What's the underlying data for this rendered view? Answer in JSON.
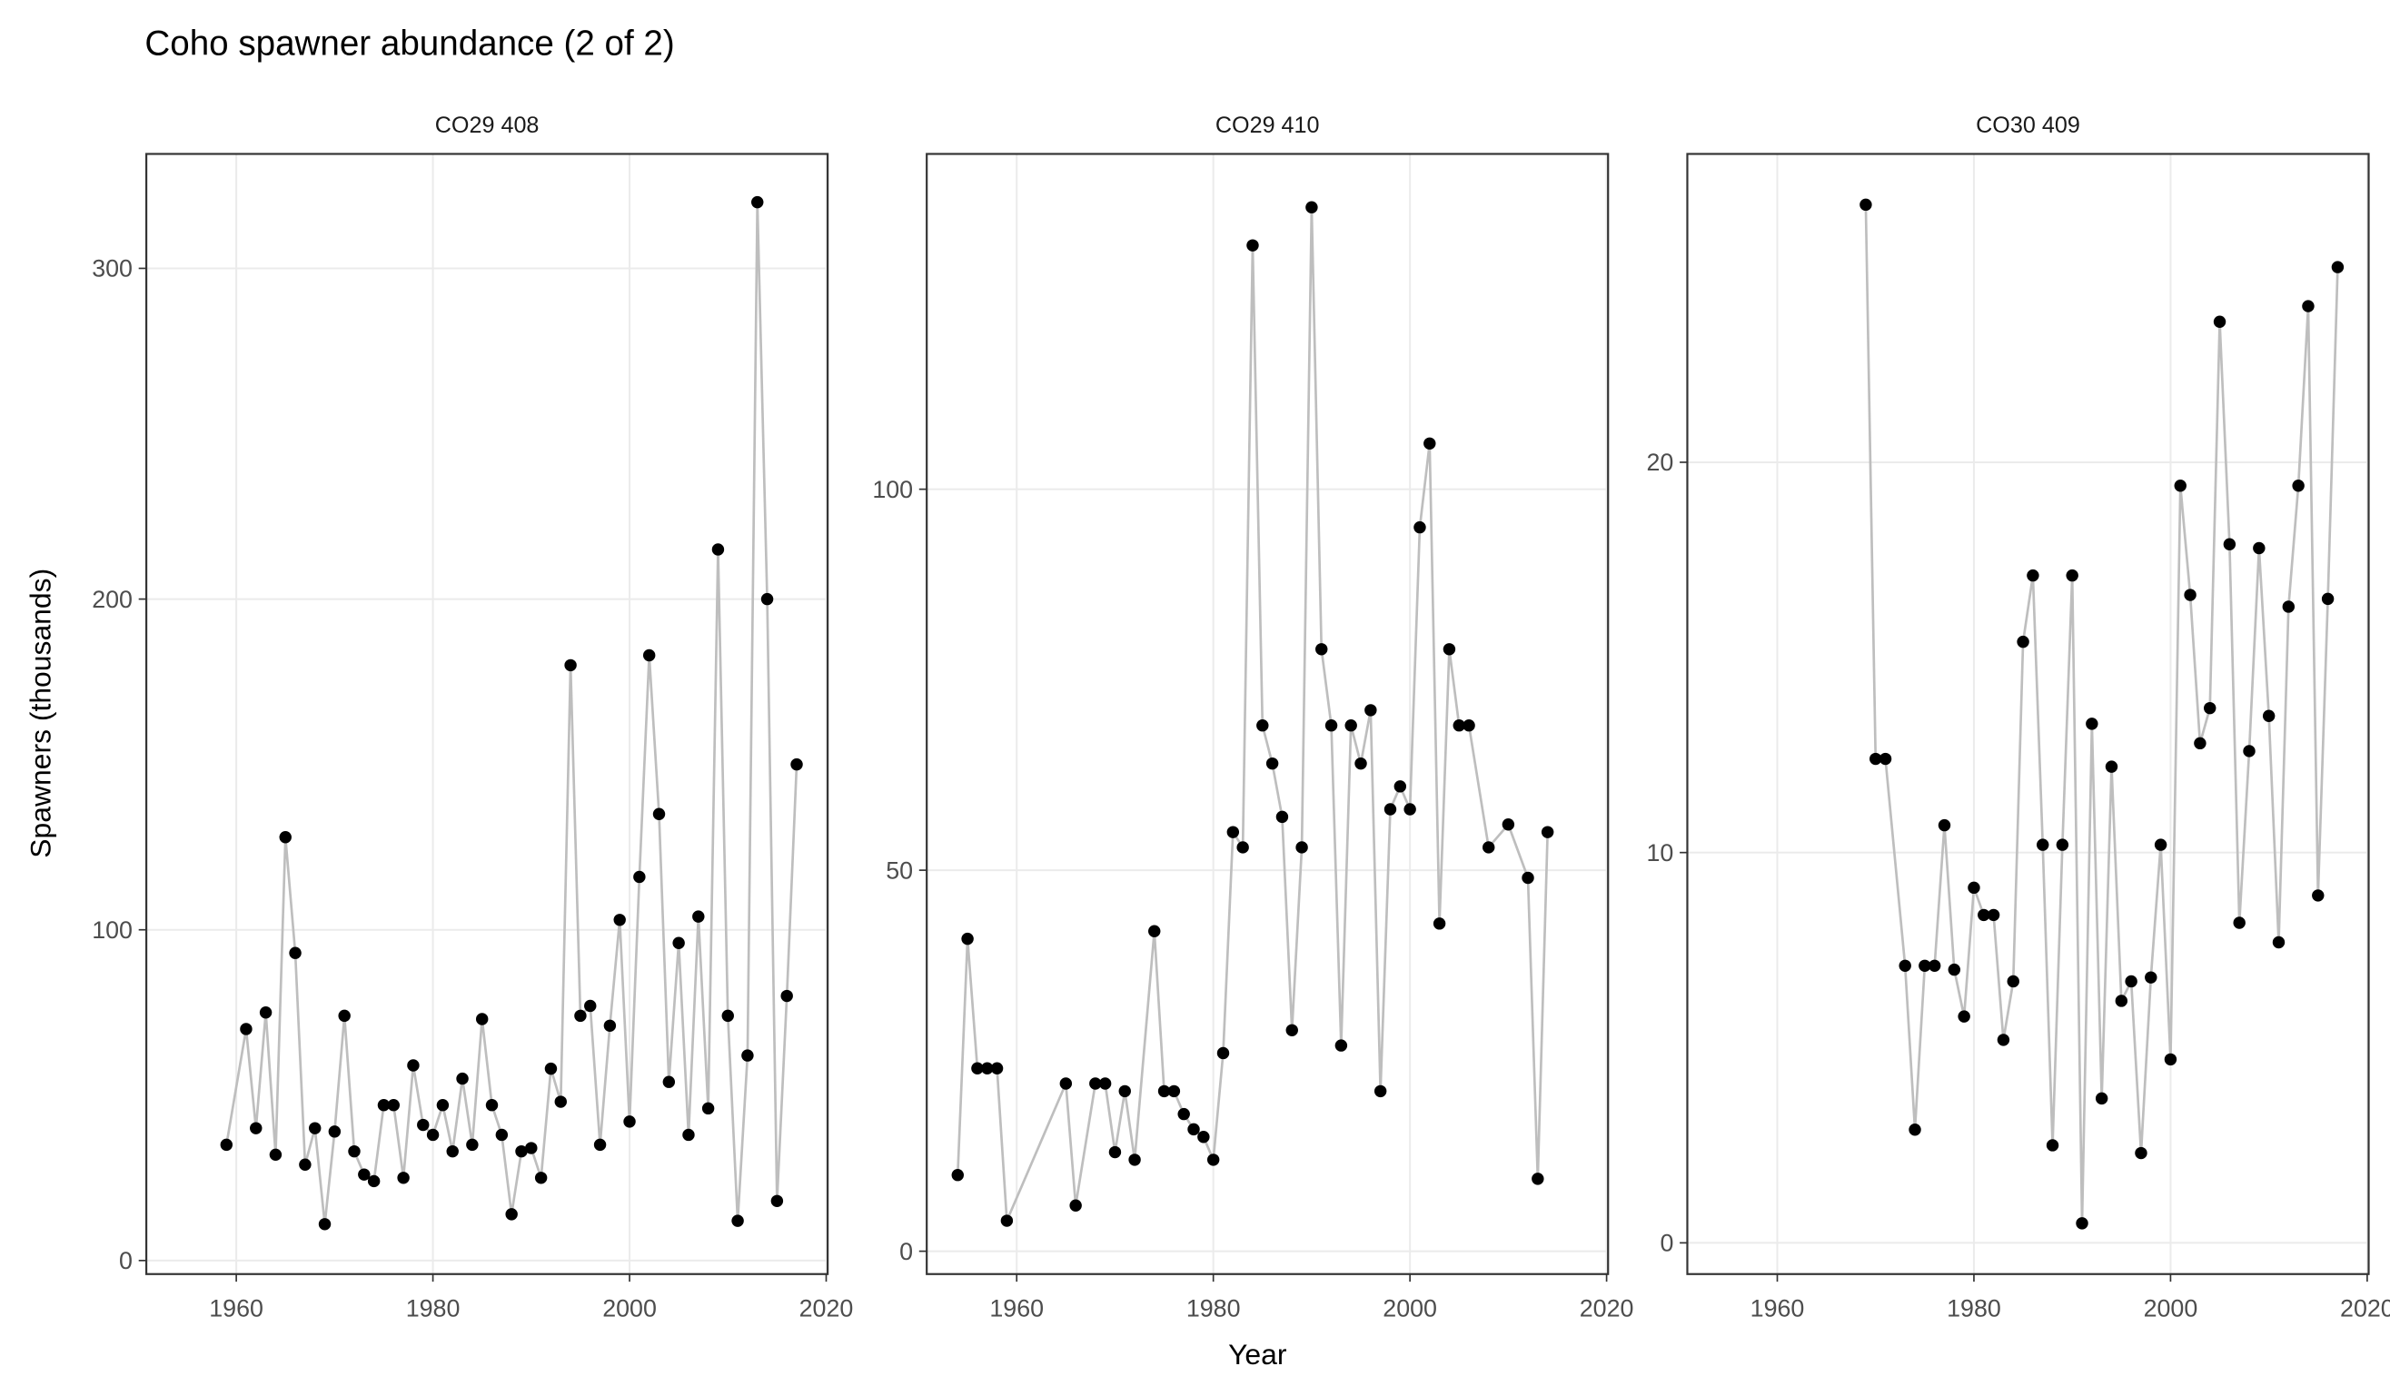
{
  "title": "Coho spawner abundance (2 of 2)",
  "xlabel": "Year",
  "ylabel": "Spawners (thousands)",
  "chart_data": [
    {
      "type": "line",
      "title": "CO29 408",
      "line_color": "#bebebe",
      "point_color": "#000000",
      "grid": true,
      "xlim": [
        1950.85,
        2020.15
      ],
      "ylim": [
        -4.1,
        334.6
      ],
      "xticks": [
        1960,
        1980,
        2000,
        2020
      ],
      "yticks": [
        0,
        100,
        200,
        300
      ],
      "x": [
        1959,
        1961,
        1962,
        1963,
        1964,
        1965,
        1966,
        1967,
        1968,
        1969,
        1970,
        1971,
        1972,
        1973,
        1974,
        1975,
        1976,
        1977,
        1978,
        1979,
        1980,
        1981,
        1982,
        1983,
        1984,
        1985,
        1986,
        1987,
        1988,
        1989,
        1990,
        1991,
        1992,
        1993,
        1994,
        1995,
        1996,
        1997,
        1998,
        1999,
        2000,
        2001,
        2002,
        2003,
        2004,
        2005,
        2006,
        2007,
        2008,
        2009,
        2010,
        2011,
        2012,
        2013,
        2014,
        2015,
        2016,
        2017
      ],
      "values": [
        35,
        70,
        40,
        75,
        32,
        128,
        93,
        29,
        40,
        11,
        39,
        74,
        33,
        26,
        24,
        47,
        47,
        25,
        59,
        41,
        38,
        47,
        33,
        55,
        35,
        73,
        47,
        38,
        14,
        33,
        34,
        25,
        58,
        48,
        180,
        74,
        77,
        35,
        71,
        103,
        42,
        116,
        183,
        135,
        54,
        96,
        38,
        104,
        46,
        215,
        74,
        12,
        62,
        320,
        200,
        18,
        80,
        150
      ]
    },
    {
      "type": "line",
      "title": "CO29 410",
      "line_color": "#bebebe",
      "point_color": "#000000",
      "grid": true,
      "xlim": [
        1950.85,
        2020.15
      ],
      "ylim": [
        -3,
        144
      ],
      "xticks": [
        1960,
        1980,
        2000,
        2020
      ],
      "yticks": [
        0,
        50,
        100
      ],
      "x": [
        1954,
        1955,
        1956,
        1957,
        1958,
        1959,
        1965,
        1966,
        1968,
        1969,
        1970,
        1971,
        1972,
        1974,
        1975,
        1976,
        1977,
        1978,
        1979,
        1980,
        1981,
        1982,
        1983,
        1984,
        1985,
        1986,
        1987,
        1988,
        1989,
        1990,
        1991,
        1992,
        1993,
        1994,
        1995,
        1996,
        1997,
        1998,
        1999,
        2000,
        2001,
        2002,
        2003,
        2004,
        2005,
        2006,
        2008,
        2010,
        2012,
        2013,
        2014
      ],
      "values": [
        10,
        41,
        24,
        24,
        24,
        4,
        22,
        6,
        22,
        22,
        13,
        21,
        12,
        42,
        21,
        21,
        18,
        16,
        15,
        12,
        26,
        55,
        53,
        132,
        69,
        64,
        57,
        29,
        53,
        137,
        79,
        69,
        27,
        69,
        64,
        71,
        21,
        58,
        61,
        58,
        95,
        106,
        43,
        79,
        69,
        69,
        53,
        56,
        49,
        9.5,
        55
      ]
    },
    {
      "type": "line",
      "title": "CO30 409",
      "line_color": "#bebebe",
      "point_color": "#000000",
      "grid": true,
      "xlim": [
        1950.85,
        2020.15
      ],
      "ylim": [
        -0.8,
        27.9
      ],
      "xticks": [
        1960,
        1980,
        2000,
        2020
      ],
      "yticks": [
        0,
        10,
        20
      ],
      "x": [
        1969,
        1970,
        1971,
        1973,
        1974,
        1975,
        1976,
        1977,
        1978,
        1979,
        1980,
        1981,
        1982,
        1983,
        1984,
        1985,
        1986,
        1987,
        1988,
        1989,
        1990,
        1991,
        1992,
        1993,
        1994,
        1995,
        1996,
        1997,
        1998,
        1999,
        2000,
        2001,
        2002,
        2003,
        2004,
        2005,
        2006,
        2007,
        2008,
        2009,
        2010,
        2011,
        2012,
        2013,
        2014,
        2015,
        2016,
        2017
      ],
      "values": [
        26.6,
        12.4,
        12.4,
        7.1,
        2.9,
        7.1,
        7.1,
        10.7,
        7.0,
        5.8,
        9.1,
        8.4,
        8.4,
        5.2,
        6.7,
        15.4,
        17.1,
        10.2,
        2.5,
        10.2,
        17.1,
        0.5,
        13.3,
        3.7,
        12.2,
        6.2,
        6.7,
        2.3,
        6.8,
        10.2,
        4.7,
        19.4,
        16.6,
        12.8,
        13.7,
        23.6,
        17.9,
        8.2,
        12.6,
        17.8,
        13.5,
        7.7,
        16.3,
        19.4,
        24.0,
        8.9,
        16.5,
        25.0
      ]
    }
  ]
}
